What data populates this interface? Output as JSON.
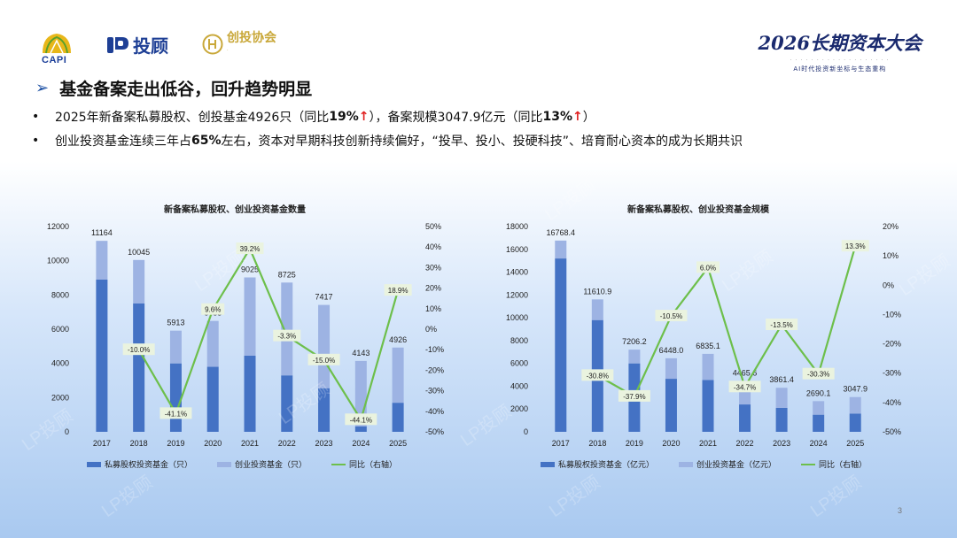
{
  "logos": {
    "capi": "CAPI",
    "lp": "投顾",
    "xiehui": "创投协会"
  },
  "conference": {
    "title": "2026长期资本大会",
    "subtitle": "AI时代投资新坐标与生态重构"
  },
  "heading": {
    "arrow": "➢",
    "text": "基金备案走出低谷，回升趋势明显"
  },
  "bullets": {
    "b1": {
      "t1": "2025年新备案私募股权、创投基金4926只（同比",
      "v1": "19%",
      "t2": "），备案规模3047.9亿元（同比",
      "v2": "13%",
      "t3": "）",
      "arrow": "↑"
    },
    "b2": {
      "t1": "创业投资基金连续三年占",
      "v1": "65%",
      "t2": "左右，资本对早期科技创新持续偏好，“投早、投小、投硬科技”、培育耐心资本的成为长期共识"
    }
  },
  "colors": {
    "private": "#4472c4",
    "venture": "#9db3e3",
    "yoy": "#6dbf4b"
  },
  "watermark": "LP投顾",
  "page_number": "3",
  "chart_data": [
    {
      "type": "bar",
      "title": "新备案私募股权、创业投资基金数量",
      "stacked": true,
      "categories": [
        "2017",
        "2018",
        "2019",
        "2020",
        "2021",
        "2022",
        "2023",
        "2024",
        "2025"
      ],
      "series": [
        {
          "name": "私募股权投资基金（只）",
          "values": [
            8900,
            7500,
            4000,
            3800,
            4450,
            3300,
            2550,
            320,
            1700
          ]
        },
        {
          "name": "创业投资基金（只）",
          "values": [
            2264,
            2545,
            1913,
            2683,
            4575,
            5425,
            4867,
            3823,
            3226
          ]
        },
        {
          "name": "同比（右轴）",
          "type": "line",
          "axis": "right",
          "values": [
            null,
            -10.0,
            -41.1,
            9.6,
            39.2,
            -3.3,
            -15.0,
            -44.1,
            18.9
          ]
        }
      ],
      "total_labels": [
        "11164",
        "10045",
        "5913",
        "6483",
        "9025",
        "8725",
        "7417",
        "4143",
        "4926"
      ],
      "yoy_labels": [
        "",
        "-10.0%",
        "-41.1%",
        "9.6%",
        "39.2%",
        "-3.3%",
        "-15.0%",
        "-44.1%",
        "18.9%"
      ],
      "left_axis": {
        "ylim": [
          0,
          12000
        ],
        "ticks": [
          "0",
          "2000",
          "4000",
          "6000",
          "8000",
          "10000",
          "12000"
        ]
      },
      "right_axis": {
        "ylim": [
          -50,
          50
        ],
        "ticks": [
          "-50%",
          "-40%",
          "-30%",
          "-20%",
          "-10%",
          "0%",
          "10%",
          "20%",
          "30%",
          "40%",
          "50%"
        ]
      },
      "legend_position": "bottom"
    },
    {
      "type": "bar",
      "title": "新备案私募股权、创业投资基金规模",
      "stacked": true,
      "categories": [
        "2017",
        "2018",
        "2019",
        "2020",
        "2021",
        "2022",
        "2023",
        "2024",
        "2025"
      ],
      "series": [
        {
          "name": "私募股权投资基金（亿元）",
          "values": [
            15200,
            9800,
            6000,
            4650,
            4550,
            2400,
            2100,
            1500,
            1600
          ]
        },
        {
          "name": "创业投资基金（亿元）",
          "values": [
            1568.4,
            1810.9,
            1206.2,
            1798.0,
            2285.1,
            2065.6,
            1761.4,
            1190.1,
            1447.9
          ]
        },
        {
          "name": "同比（右轴）",
          "type": "line",
          "axis": "right",
          "values": [
            null,
            -30.8,
            -37.9,
            -10.5,
            6.0,
            -34.7,
            -13.5,
            -30.3,
            13.3
          ]
        }
      ],
      "total_labels": [
        "16768.4",
        "11610.9",
        "7206.2",
        "6448.0",
        "6835.1",
        "4465.6",
        "3861.4",
        "2690.1",
        "3047.9"
      ],
      "yoy_labels": [
        "",
        "-30.8%",
        "-37.9%",
        "-10.5%",
        "6.0%",
        "-34.7%",
        "-13.5%",
        "-30.3%",
        "13.3%"
      ],
      "left_axis": {
        "ylim": [
          0,
          18000
        ],
        "ticks": [
          "0",
          "2000",
          "4000",
          "6000",
          "8000",
          "10000",
          "12000",
          "14000",
          "16000",
          "18000"
        ]
      },
      "right_axis": {
        "ylim": [
          -50,
          20
        ],
        "ticks": [
          "-50%",
          "-40%",
          "-30%",
          "-20%",
          "-10%",
          "0%",
          "10%",
          "20%"
        ]
      },
      "legend_position": "bottom"
    }
  ]
}
